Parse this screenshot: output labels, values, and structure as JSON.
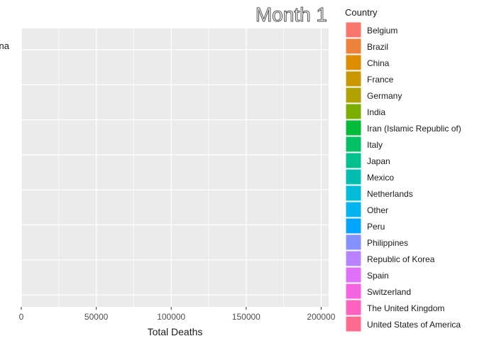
{
  "chart_data": {
    "type": "bar",
    "orientation": "horizontal",
    "title": "Month 1",
    "xlabel": "Total Deaths",
    "ylabel": "",
    "xlim": [
      0,
      205000
    ],
    "x_ticks": [
      0,
      50000,
      100000,
      150000,
      200000
    ],
    "x_tick_labels": [
      "0",
      "50000",
      "100000",
      "150000",
      "200000"
    ],
    "categories": [
      "China"
    ],
    "values": [
      0
    ],
    "bar_country": [
      "China"
    ],
    "legend_position": "right",
    "legend": {
      "title": "Country",
      "entries": [
        {
          "name": "Belgium",
          "color": "#F8766D"
        },
        {
          "name": "Brazil",
          "color": "#EC823C"
        },
        {
          "name": "China",
          "color": "#DD8D00"
        },
        {
          "name": "France",
          "color": "#C99800"
        },
        {
          "name": "Germany",
          "color": "#AFA100"
        },
        {
          "name": "India",
          "color": "#7CAE00"
        },
        {
          "name": "Iran (Islamic Republic of)",
          "color": "#00BA38"
        },
        {
          "name": "Italy",
          "color": "#00C065"
        },
        {
          "name": "Japan",
          "color": "#00C08D"
        },
        {
          "name": "Mexico",
          "color": "#00BFB0"
        },
        {
          "name": "Netherlands",
          "color": "#00BCD8"
        },
        {
          "name": "Other",
          "color": "#00B4EF"
        },
        {
          "name": "Peru",
          "color": "#00A5FF"
        },
        {
          "name": "Philippines",
          "color": "#8491FF"
        },
        {
          "name": "Republic of Korea",
          "color": "#B983FF"
        },
        {
          "name": "Spain",
          "color": "#DF70F8"
        },
        {
          "name": "Switzerland",
          "color": "#F564E3"
        },
        {
          "name": "The United Kingdom",
          "color": "#FF62BC"
        },
        {
          "name": "United States of America",
          "color": "#FF6C90"
        }
      ]
    },
    "grid": true,
    "panel_background": "#EBEBEB",
    "gridline_color": "#FFFFFF"
  }
}
